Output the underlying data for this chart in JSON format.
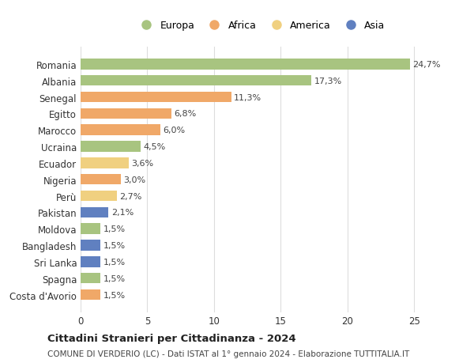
{
  "countries": [
    "Costa d'Avorio",
    "Spagna",
    "Sri Lanka",
    "Bangladesh",
    "Moldova",
    "Pakistan",
    "Perù",
    "Nigeria",
    "Ecuador",
    "Ucraina",
    "Marocco",
    "Egitto",
    "Senegal",
    "Albania",
    "Romania"
  ],
  "values": [
    1.5,
    1.5,
    1.5,
    1.5,
    1.5,
    2.1,
    2.7,
    3.0,
    3.6,
    4.5,
    6.0,
    6.8,
    11.3,
    17.3,
    24.7
  ],
  "labels": [
    "1,5%",
    "1,5%",
    "1,5%",
    "1,5%",
    "1,5%",
    "2,1%",
    "2,7%",
    "3,0%",
    "3,6%",
    "4,5%",
    "6,0%",
    "6,8%",
    "11,3%",
    "17,3%",
    "24,7%"
  ],
  "colors": [
    "#f0a868",
    "#a8c480",
    "#6080c0",
    "#6080c0",
    "#a8c480",
    "#6080c0",
    "#f0d080",
    "#f0a868",
    "#f0d080",
    "#a8c480",
    "#f0a868",
    "#f0a868",
    "#f0a868",
    "#a8c480",
    "#a8c480"
  ],
  "legend_names": [
    "Europa",
    "Africa",
    "America",
    "Asia"
  ],
  "legend_colors": [
    "#a8c480",
    "#f0a868",
    "#f0d080",
    "#6080c0"
  ],
  "title": "Cittadini Stranieri per Cittadinanza - 2024",
  "subtitle": "COMUNE DI VERDERIO (LC) - Dati ISTAT al 1° gennaio 2024 - Elaborazione TUTTITALIA.IT",
  "xlim": [
    0,
    27
  ],
  "xticks": [
    0,
    5,
    10,
    15,
    20,
    25
  ],
  "bg_color": "#ffffff",
  "grid_color": "#dddddd",
  "bar_height": 0.65
}
